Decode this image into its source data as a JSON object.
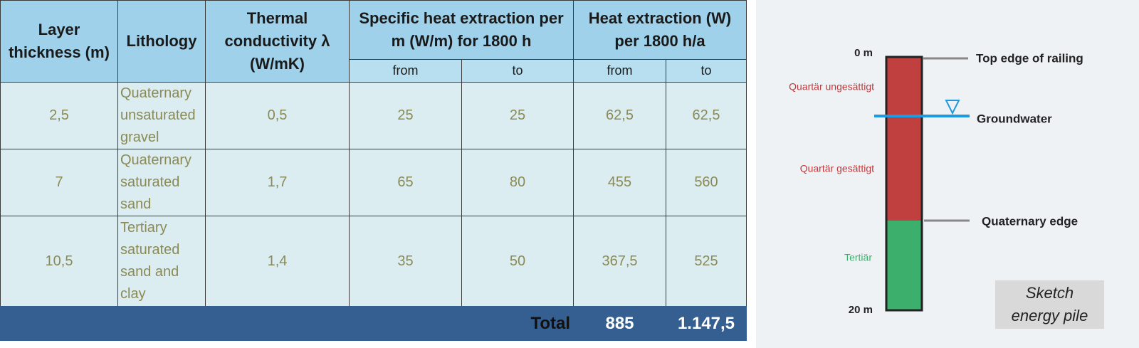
{
  "table": {
    "header": {
      "thickness": "Layer thickness (m)",
      "lithology": "Lithology",
      "conductivity": "Thermal conductivity λ (W/mK)",
      "specific": "Specific heat extraction per m (W/m) for 1800 h",
      "extraction": "Heat extraction (W) per 1800 h/a",
      "sub": [
        "from",
        "to",
        "from",
        "to"
      ]
    },
    "rows": [
      [
        "2,5",
        "Quaternary unsaturated gravel",
        "0,5",
        "25",
        "25",
        "62,5",
        "62,5"
      ],
      [
        "7",
        "Quaternary saturated sand",
        "1,7",
        "65",
        "80",
        "455",
        "560"
      ],
      [
        "10,5",
        "Tertiary saturated sand and clay",
        "1,4",
        "35",
        "50",
        "367,5",
        "525"
      ]
    ],
    "total": {
      "label": "Total",
      "from": "885",
      "to": "1.147,5"
    }
  },
  "sketch": {
    "top_depth": "0 m",
    "bottom_depth": "20 m",
    "layer_unsaturated": "Quartär ungesättigt",
    "layer_saturated": "Quartär gesättigt",
    "layer_tertiary": "Tertiär",
    "top_edge": "Top edge of railing",
    "groundwater": "Groundwater",
    "quaternary_edge": "Quaternary edge",
    "caption": "Sketch energy pile"
  }
}
